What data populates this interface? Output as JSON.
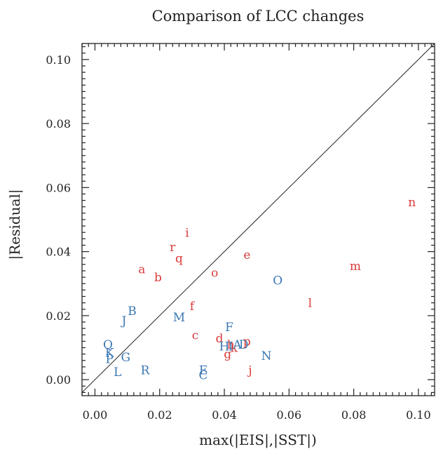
{
  "chart_data": {
    "type": "scatter",
    "title": "Comparison of LCC changes",
    "xlabel": "max(|EIS|,|SST|)",
    "ylabel": "|Residual|",
    "xlim": [
      -0.004,
      0.105
    ],
    "ylim": [
      -0.005,
      0.105
    ],
    "xticks": [
      "0.00",
      "0.02",
      "0.04",
      "0.06",
      "0.08",
      "0.10"
    ],
    "yticks": [
      "0.00",
      "0.02",
      "0.04",
      "0.06",
      "0.08",
      "0.10"
    ],
    "grid": false,
    "reference_line": "y = x",
    "series": [
      {
        "color": "#d93a3a",
        "points": [
          {
            "label": "a",
            "x": 0.0145,
            "y": 0.0345
          },
          {
            "label": "b",
            "x": 0.0195,
            "y": 0.032
          },
          {
            "label": "c",
            "x": 0.031,
            "y": 0.014
          },
          {
            "label": "d",
            "x": 0.0385,
            "y": 0.013
          },
          {
            "label": "e",
            "x": 0.047,
            "y": 0.039
          },
          {
            "label": "f",
            "x": 0.03,
            "y": 0.023
          },
          {
            "label": "g",
            "x": 0.041,
            "y": 0.008
          },
          {
            "label": "h",
            "x": 0.042,
            "y": 0.011
          },
          {
            "label": "i",
            "x": 0.0285,
            "y": 0.046
          },
          {
            "label": "j",
            "x": 0.048,
            "y": 0.003
          },
          {
            "label": "k",
            "x": 0.043,
            "y": 0.01
          },
          {
            "label": "l",
            "x": 0.0665,
            "y": 0.024
          },
          {
            "label": "m",
            "x": 0.0805,
            "y": 0.0355
          },
          {
            "label": "n",
            "x": 0.098,
            "y": 0.0555
          },
          {
            "label": "o",
            "x": 0.037,
            "y": 0.0335
          },
          {
            "label": "p",
            "x": 0.047,
            "y": 0.012
          },
          {
            "label": "q",
            "x": 0.026,
            "y": 0.038
          },
          {
            "label": "r",
            "x": 0.024,
            "y": 0.0415
          }
        ]
      },
      {
        "color": "#3c78b4",
        "points": [
          {
            "label": "A",
            "x": 0.044,
            "y": 0.011
          },
          {
            "label": "B",
            "x": 0.0115,
            "y": 0.0215
          },
          {
            "label": "C",
            "x": 0.0335,
            "y": 0.0015
          },
          {
            "label": "D",
            "x": 0.046,
            "y": 0.011
          },
          {
            "label": "E",
            "x": 0.0335,
            "y": 0.003
          },
          {
            "label": "F",
            "x": 0.0415,
            "y": 0.0165
          },
          {
            "label": "G",
            "x": 0.0095,
            "y": 0.007
          },
          {
            "label": "H",
            "x": 0.04,
            "y": 0.0105
          },
          {
            "label": "I",
            "x": 0.042,
            "y": 0.0105
          },
          {
            "label": "J",
            "x": 0.009,
            "y": 0.0185
          },
          {
            "label": "K",
            "x": 0.0045,
            "y": 0.0085
          },
          {
            "label": "L",
            "x": 0.007,
            "y": 0.0025
          },
          {
            "label": "M",
            "x": 0.026,
            "y": 0.0195
          },
          {
            "label": "N",
            "x": 0.053,
            "y": 0.0075
          },
          {
            "label": "O",
            "x": 0.0565,
            "y": 0.031
          },
          {
            "label": "P",
            "x": 0.0045,
            "y": 0.0065
          },
          {
            "label": "Q",
            "x": 0.004,
            "y": 0.011
          },
          {
            "label": "R",
            "x": 0.0155,
            "y": 0.003
          }
        ]
      }
    ]
  }
}
